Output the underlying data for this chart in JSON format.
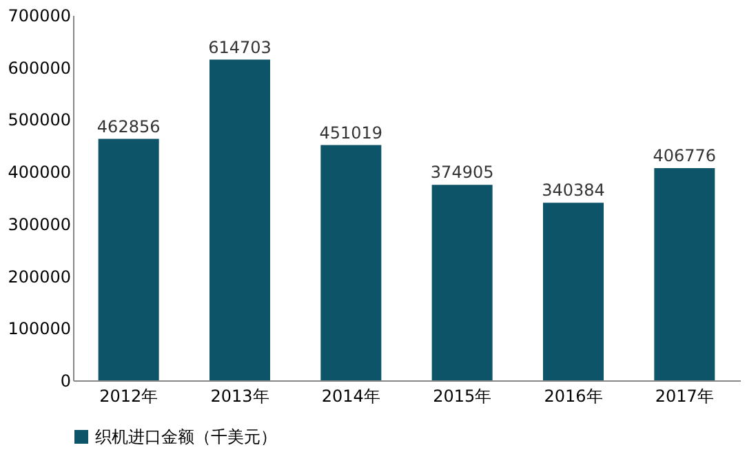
{
  "chart_data": {
    "type": "bar",
    "categories": [
      "2012年",
      "2013年",
      "2014年",
      "2015年",
      "2016年",
      "2017年"
    ],
    "series": [
      {
        "name": "织机进口金额（千美元）",
        "color": "#0d5468",
        "values": [
          462856,
          614703,
          451019,
          374905,
          340384,
          406776
        ]
      }
    ],
    "ylim": [
      0,
      700000
    ],
    "yticks": [
      0,
      100000,
      200000,
      300000,
      400000,
      500000,
      600000,
      700000
    ],
    "data_labels": true,
    "grid": false,
    "legend": "bottom"
  }
}
